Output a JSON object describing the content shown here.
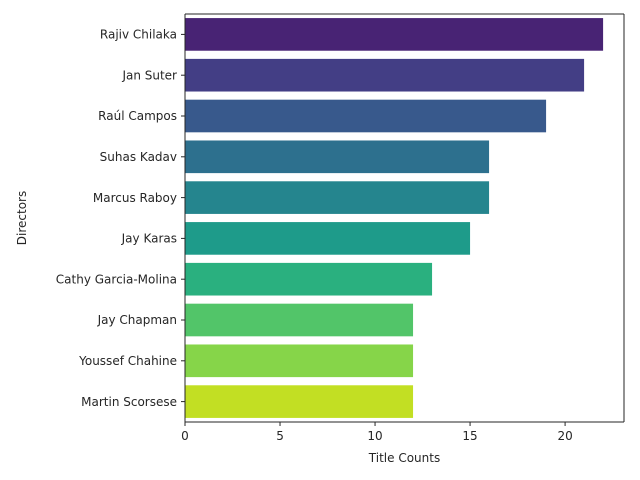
{
  "chart_data": {
    "type": "bar",
    "orientation": "horizontal",
    "categories": [
      "Rajiv Chilaka",
      "Jan Suter",
      "Raúl Campos",
      "Suhas Kadav",
      "Marcus Raboy",
      "Jay Karas",
      "Cathy Garcia-Molina",
      "Jay Chapman",
      "Youssef Chahine",
      "Martin Scorsese"
    ],
    "values": [
      22,
      21,
      19,
      16,
      16,
      15,
      13,
      12,
      12,
      12
    ],
    "colors": [
      "#482374",
      "#433e85",
      "#38598c",
      "#2d708e",
      "#25858e",
      "#1e9b8a",
      "#2ab07f",
      "#52c569",
      "#86d549",
      "#c2df23"
    ],
    "xlabel": "Title Counts",
    "ylabel": "Directors",
    "xlim": [
      0,
      23.1
    ],
    "xticks": [
      0,
      5,
      10,
      15,
      20
    ],
    "grid": false
  }
}
